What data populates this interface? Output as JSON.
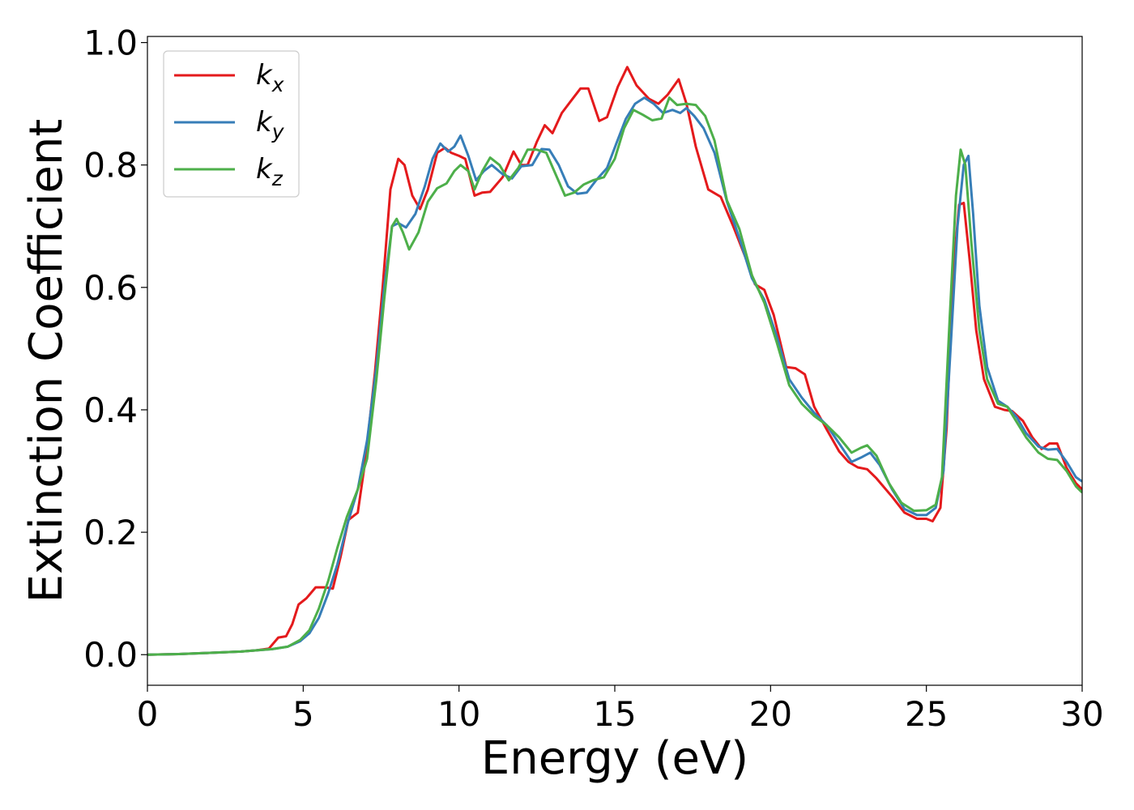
{
  "chart_data": {
    "type": "line",
    "title": "",
    "xlabel": "Energy (eV)",
    "ylabel": "Extinction Coefficient",
    "xlim": [
      0,
      30
    ],
    "ylim": [
      -0.05,
      1.01
    ],
    "xticks": [
      0,
      5,
      10,
      15,
      20,
      25,
      30
    ],
    "xtick_labels": [
      "0",
      "5",
      "10",
      "15",
      "20",
      "25",
      "30"
    ],
    "yticks": [
      0.0,
      0.2,
      0.4,
      0.6,
      0.8,
      1.0
    ],
    "ytick_labels": [
      "0.0",
      "0.2",
      "0.4",
      "0.6",
      "0.8",
      "1.0"
    ],
    "grid": false,
    "legend_position": "top-left",
    "series": [
      {
        "name": "k_x",
        "label_base": "k",
        "label_sub": "x",
        "color": "#e41a1c",
        "points": [
          [
            0,
            0
          ],
          [
            1,
            0.001
          ],
          [
            2,
            0.003
          ],
          [
            3,
            0.005
          ],
          [
            3.5,
            0.007
          ],
          [
            3.9,
            0.01
          ],
          [
            4.2,
            0.028
          ],
          [
            4.45,
            0.03
          ],
          [
            4.65,
            0.05
          ],
          [
            4.85,
            0.082
          ],
          [
            5.1,
            0.092
          ],
          [
            5.4,
            0.11
          ],
          [
            5.7,
            0.11
          ],
          [
            5.95,
            0.108
          ],
          [
            6.2,
            0.16
          ],
          [
            6.45,
            0.22
          ],
          [
            6.75,
            0.232
          ],
          [
            7.0,
            0.32
          ],
          [
            7.3,
            0.46
          ],
          [
            7.55,
            0.6
          ],
          [
            7.8,
            0.76
          ],
          [
            8.05,
            0.81
          ],
          [
            8.25,
            0.8
          ],
          [
            8.5,
            0.75
          ],
          [
            8.75,
            0.728
          ],
          [
            9.0,
            0.76
          ],
          [
            9.3,
            0.82
          ],
          [
            9.55,
            0.828
          ],
          [
            9.75,
            0.82
          ],
          [
            10.0,
            0.815
          ],
          [
            10.2,
            0.81
          ],
          [
            10.5,
            0.75
          ],
          [
            10.75,
            0.755
          ],
          [
            11.0,
            0.756
          ],
          [
            11.4,
            0.78
          ],
          [
            11.75,
            0.822
          ],
          [
            12.0,
            0.8
          ],
          [
            12.2,
            0.8
          ],
          [
            12.5,
            0.838
          ],
          [
            12.75,
            0.865
          ],
          [
            13.0,
            0.852
          ],
          [
            13.3,
            0.885
          ],
          [
            13.6,
            0.905
          ],
          [
            13.9,
            0.925
          ],
          [
            14.15,
            0.925
          ],
          [
            14.5,
            0.872
          ],
          [
            14.75,
            0.878
          ],
          [
            15.1,
            0.928
          ],
          [
            15.4,
            0.96
          ],
          [
            15.7,
            0.93
          ],
          [
            16.1,
            0.908
          ],
          [
            16.4,
            0.9
          ],
          [
            16.7,
            0.915
          ],
          [
            17.05,
            0.94
          ],
          [
            17.3,
            0.9
          ],
          [
            17.6,
            0.83
          ],
          [
            18.0,
            0.76
          ],
          [
            18.4,
            0.748
          ],
          [
            18.8,
            0.7
          ],
          [
            19.2,
            0.648
          ],
          [
            19.5,
            0.605
          ],
          [
            19.8,
            0.596
          ],
          [
            20.1,
            0.555
          ],
          [
            20.5,
            0.47
          ],
          [
            20.8,
            0.468
          ],
          [
            21.1,
            0.458
          ],
          [
            21.4,
            0.405
          ],
          [
            21.8,
            0.368
          ],
          [
            22.2,
            0.332
          ],
          [
            22.5,
            0.315
          ],
          [
            22.8,
            0.306
          ],
          [
            23.1,
            0.303
          ],
          [
            23.4,
            0.288
          ],
          [
            23.9,
            0.258
          ],
          [
            24.3,
            0.232
          ],
          [
            24.7,
            0.222
          ],
          [
            25.0,
            0.222
          ],
          [
            25.2,
            0.218
          ],
          [
            25.45,
            0.24
          ],
          [
            25.65,
            0.37
          ],
          [
            25.85,
            0.62
          ],
          [
            26.05,
            0.735
          ],
          [
            26.2,
            0.738
          ],
          [
            26.4,
            0.64
          ],
          [
            26.6,
            0.53
          ],
          [
            26.85,
            0.45
          ],
          [
            27.2,
            0.405
          ],
          [
            27.5,
            0.4
          ],
          [
            27.75,
            0.398
          ],
          [
            28.1,
            0.382
          ],
          [
            28.4,
            0.355
          ],
          [
            28.7,
            0.336
          ],
          [
            28.95,
            0.345
          ],
          [
            29.2,
            0.345
          ],
          [
            29.5,
            0.305
          ],
          [
            29.8,
            0.28
          ],
          [
            30,
            0.27
          ]
        ]
      },
      {
        "name": "k_y",
        "label_base": "k",
        "label_sub": "y",
        "color": "#377eb8",
        "points": [
          [
            0,
            0
          ],
          [
            1,
            0.001
          ],
          [
            2,
            0.003
          ],
          [
            3,
            0.005
          ],
          [
            3.5,
            0.007
          ],
          [
            4.0,
            0.009
          ],
          [
            4.5,
            0.013
          ],
          [
            4.9,
            0.022
          ],
          [
            5.2,
            0.035
          ],
          [
            5.5,
            0.06
          ],
          [
            5.8,
            0.1
          ],
          [
            6.1,
            0.148
          ],
          [
            6.4,
            0.21
          ],
          [
            6.75,
            0.27
          ],
          [
            7.05,
            0.35
          ],
          [
            7.35,
            0.47
          ],
          [
            7.6,
            0.6
          ],
          [
            7.85,
            0.7
          ],
          [
            8.05,
            0.705
          ],
          [
            8.3,
            0.698
          ],
          [
            8.6,
            0.72
          ],
          [
            8.9,
            0.765
          ],
          [
            9.15,
            0.81
          ],
          [
            9.4,
            0.835
          ],
          [
            9.65,
            0.822
          ],
          [
            9.85,
            0.83
          ],
          [
            10.05,
            0.848
          ],
          [
            10.3,
            0.815
          ],
          [
            10.55,
            0.775
          ],
          [
            10.8,
            0.79
          ],
          [
            11.05,
            0.8
          ],
          [
            11.4,
            0.785
          ],
          [
            11.7,
            0.778
          ],
          [
            12.0,
            0.798
          ],
          [
            12.35,
            0.8
          ],
          [
            12.65,
            0.826
          ],
          [
            12.9,
            0.825
          ],
          [
            13.2,
            0.8
          ],
          [
            13.5,
            0.765
          ],
          [
            13.8,
            0.753
          ],
          [
            14.1,
            0.755
          ],
          [
            14.4,
            0.775
          ],
          [
            14.75,
            0.795
          ],
          [
            15.05,
            0.835
          ],
          [
            15.35,
            0.875
          ],
          [
            15.65,
            0.9
          ],
          [
            15.95,
            0.91
          ],
          [
            16.25,
            0.9
          ],
          [
            16.55,
            0.885
          ],
          [
            16.85,
            0.89
          ],
          [
            17.1,
            0.885
          ],
          [
            17.3,
            0.893
          ],
          [
            17.55,
            0.88
          ],
          [
            17.85,
            0.86
          ],
          [
            18.2,
            0.82
          ],
          [
            18.6,
            0.74
          ],
          [
            19.0,
            0.68
          ],
          [
            19.4,
            0.615
          ],
          [
            19.8,
            0.58
          ],
          [
            20.2,
            0.52
          ],
          [
            20.6,
            0.45
          ],
          [
            21.0,
            0.42
          ],
          [
            21.4,
            0.395
          ],
          [
            21.8,
            0.375
          ],
          [
            22.2,
            0.345
          ],
          [
            22.6,
            0.315
          ],
          [
            22.9,
            0.322
          ],
          [
            23.2,
            0.33
          ],
          [
            23.5,
            0.31
          ],
          [
            23.9,
            0.27
          ],
          [
            24.3,
            0.238
          ],
          [
            24.7,
            0.228
          ],
          [
            25.0,
            0.228
          ],
          [
            25.3,
            0.24
          ],
          [
            25.55,
            0.3
          ],
          [
            25.8,
            0.52
          ],
          [
            26.0,
            0.7
          ],
          [
            26.2,
            0.8
          ],
          [
            26.35,
            0.815
          ],
          [
            26.5,
            0.72
          ],
          [
            26.7,
            0.57
          ],
          [
            26.95,
            0.47
          ],
          [
            27.3,
            0.415
          ],
          [
            27.6,
            0.405
          ],
          [
            27.9,
            0.388
          ],
          [
            28.2,
            0.362
          ],
          [
            28.6,
            0.34
          ],
          [
            28.9,
            0.335
          ],
          [
            29.2,
            0.336
          ],
          [
            29.5,
            0.315
          ],
          [
            29.8,
            0.29
          ],
          [
            30,
            0.283
          ]
        ]
      },
      {
        "name": "k_z",
        "label_base": "k",
        "label_sub": "z",
        "color": "#4daf4a",
        "points": [
          [
            0,
            0
          ],
          [
            1,
            0.001
          ],
          [
            2,
            0.003
          ],
          [
            3,
            0.005
          ],
          [
            3.5,
            0.007
          ],
          [
            4.0,
            0.009
          ],
          [
            4.5,
            0.013
          ],
          [
            4.9,
            0.024
          ],
          [
            5.2,
            0.04
          ],
          [
            5.5,
            0.075
          ],
          [
            5.8,
            0.12
          ],
          [
            6.1,
            0.175
          ],
          [
            6.4,
            0.225
          ],
          [
            6.75,
            0.27
          ],
          [
            7.05,
            0.32
          ],
          [
            7.35,
            0.45
          ],
          [
            7.6,
            0.58
          ],
          [
            7.85,
            0.7
          ],
          [
            8.0,
            0.712
          ],
          [
            8.2,
            0.69
          ],
          [
            8.4,
            0.662
          ],
          [
            8.7,
            0.69
          ],
          [
            9.0,
            0.74
          ],
          [
            9.3,
            0.762
          ],
          [
            9.6,
            0.77
          ],
          [
            9.85,
            0.79
          ],
          [
            10.05,
            0.8
          ],
          [
            10.3,
            0.79
          ],
          [
            10.5,
            0.76
          ],
          [
            10.75,
            0.79
          ],
          [
            11.0,
            0.812
          ],
          [
            11.3,
            0.8
          ],
          [
            11.6,
            0.775
          ],
          [
            11.9,
            0.795
          ],
          [
            12.2,
            0.825
          ],
          [
            12.5,
            0.825
          ],
          [
            12.8,
            0.82
          ],
          [
            13.1,
            0.785
          ],
          [
            13.4,
            0.75
          ],
          [
            13.7,
            0.755
          ],
          [
            14.0,
            0.768
          ],
          [
            14.3,
            0.775
          ],
          [
            14.65,
            0.78
          ],
          [
            15.0,
            0.81
          ],
          [
            15.3,
            0.86
          ],
          [
            15.6,
            0.89
          ],
          [
            15.9,
            0.882
          ],
          [
            16.2,
            0.873
          ],
          [
            16.5,
            0.876
          ],
          [
            16.75,
            0.91
          ],
          [
            17.0,
            0.898
          ],
          [
            17.3,
            0.9
          ],
          [
            17.6,
            0.898
          ],
          [
            17.9,
            0.88
          ],
          [
            18.2,
            0.84
          ],
          [
            18.6,
            0.742
          ],
          [
            19.0,
            0.695
          ],
          [
            19.4,
            0.62
          ],
          [
            19.8,
            0.575
          ],
          [
            20.2,
            0.51
          ],
          [
            20.6,
            0.44
          ],
          [
            21.0,
            0.41
          ],
          [
            21.4,
            0.39
          ],
          [
            21.8,
            0.375
          ],
          [
            22.2,
            0.355
          ],
          [
            22.6,
            0.33
          ],
          [
            22.9,
            0.338
          ],
          [
            23.1,
            0.342
          ],
          [
            23.4,
            0.325
          ],
          [
            23.8,
            0.28
          ],
          [
            24.2,
            0.248
          ],
          [
            24.6,
            0.235
          ],
          [
            25.0,
            0.236
          ],
          [
            25.3,
            0.245
          ],
          [
            25.5,
            0.29
          ],
          [
            25.75,
            0.55
          ],
          [
            25.95,
            0.75
          ],
          [
            26.1,
            0.825
          ],
          [
            26.25,
            0.8
          ],
          [
            26.45,
            0.67
          ],
          [
            26.7,
            0.53
          ],
          [
            26.95,
            0.45
          ],
          [
            27.3,
            0.41
          ],
          [
            27.6,
            0.405
          ],
          [
            27.9,
            0.38
          ],
          [
            28.2,
            0.355
          ],
          [
            28.6,
            0.33
          ],
          [
            28.9,
            0.32
          ],
          [
            29.2,
            0.318
          ],
          [
            29.5,
            0.3
          ],
          [
            29.8,
            0.275
          ],
          [
            30,
            0.265
          ]
        ]
      }
    ]
  }
}
